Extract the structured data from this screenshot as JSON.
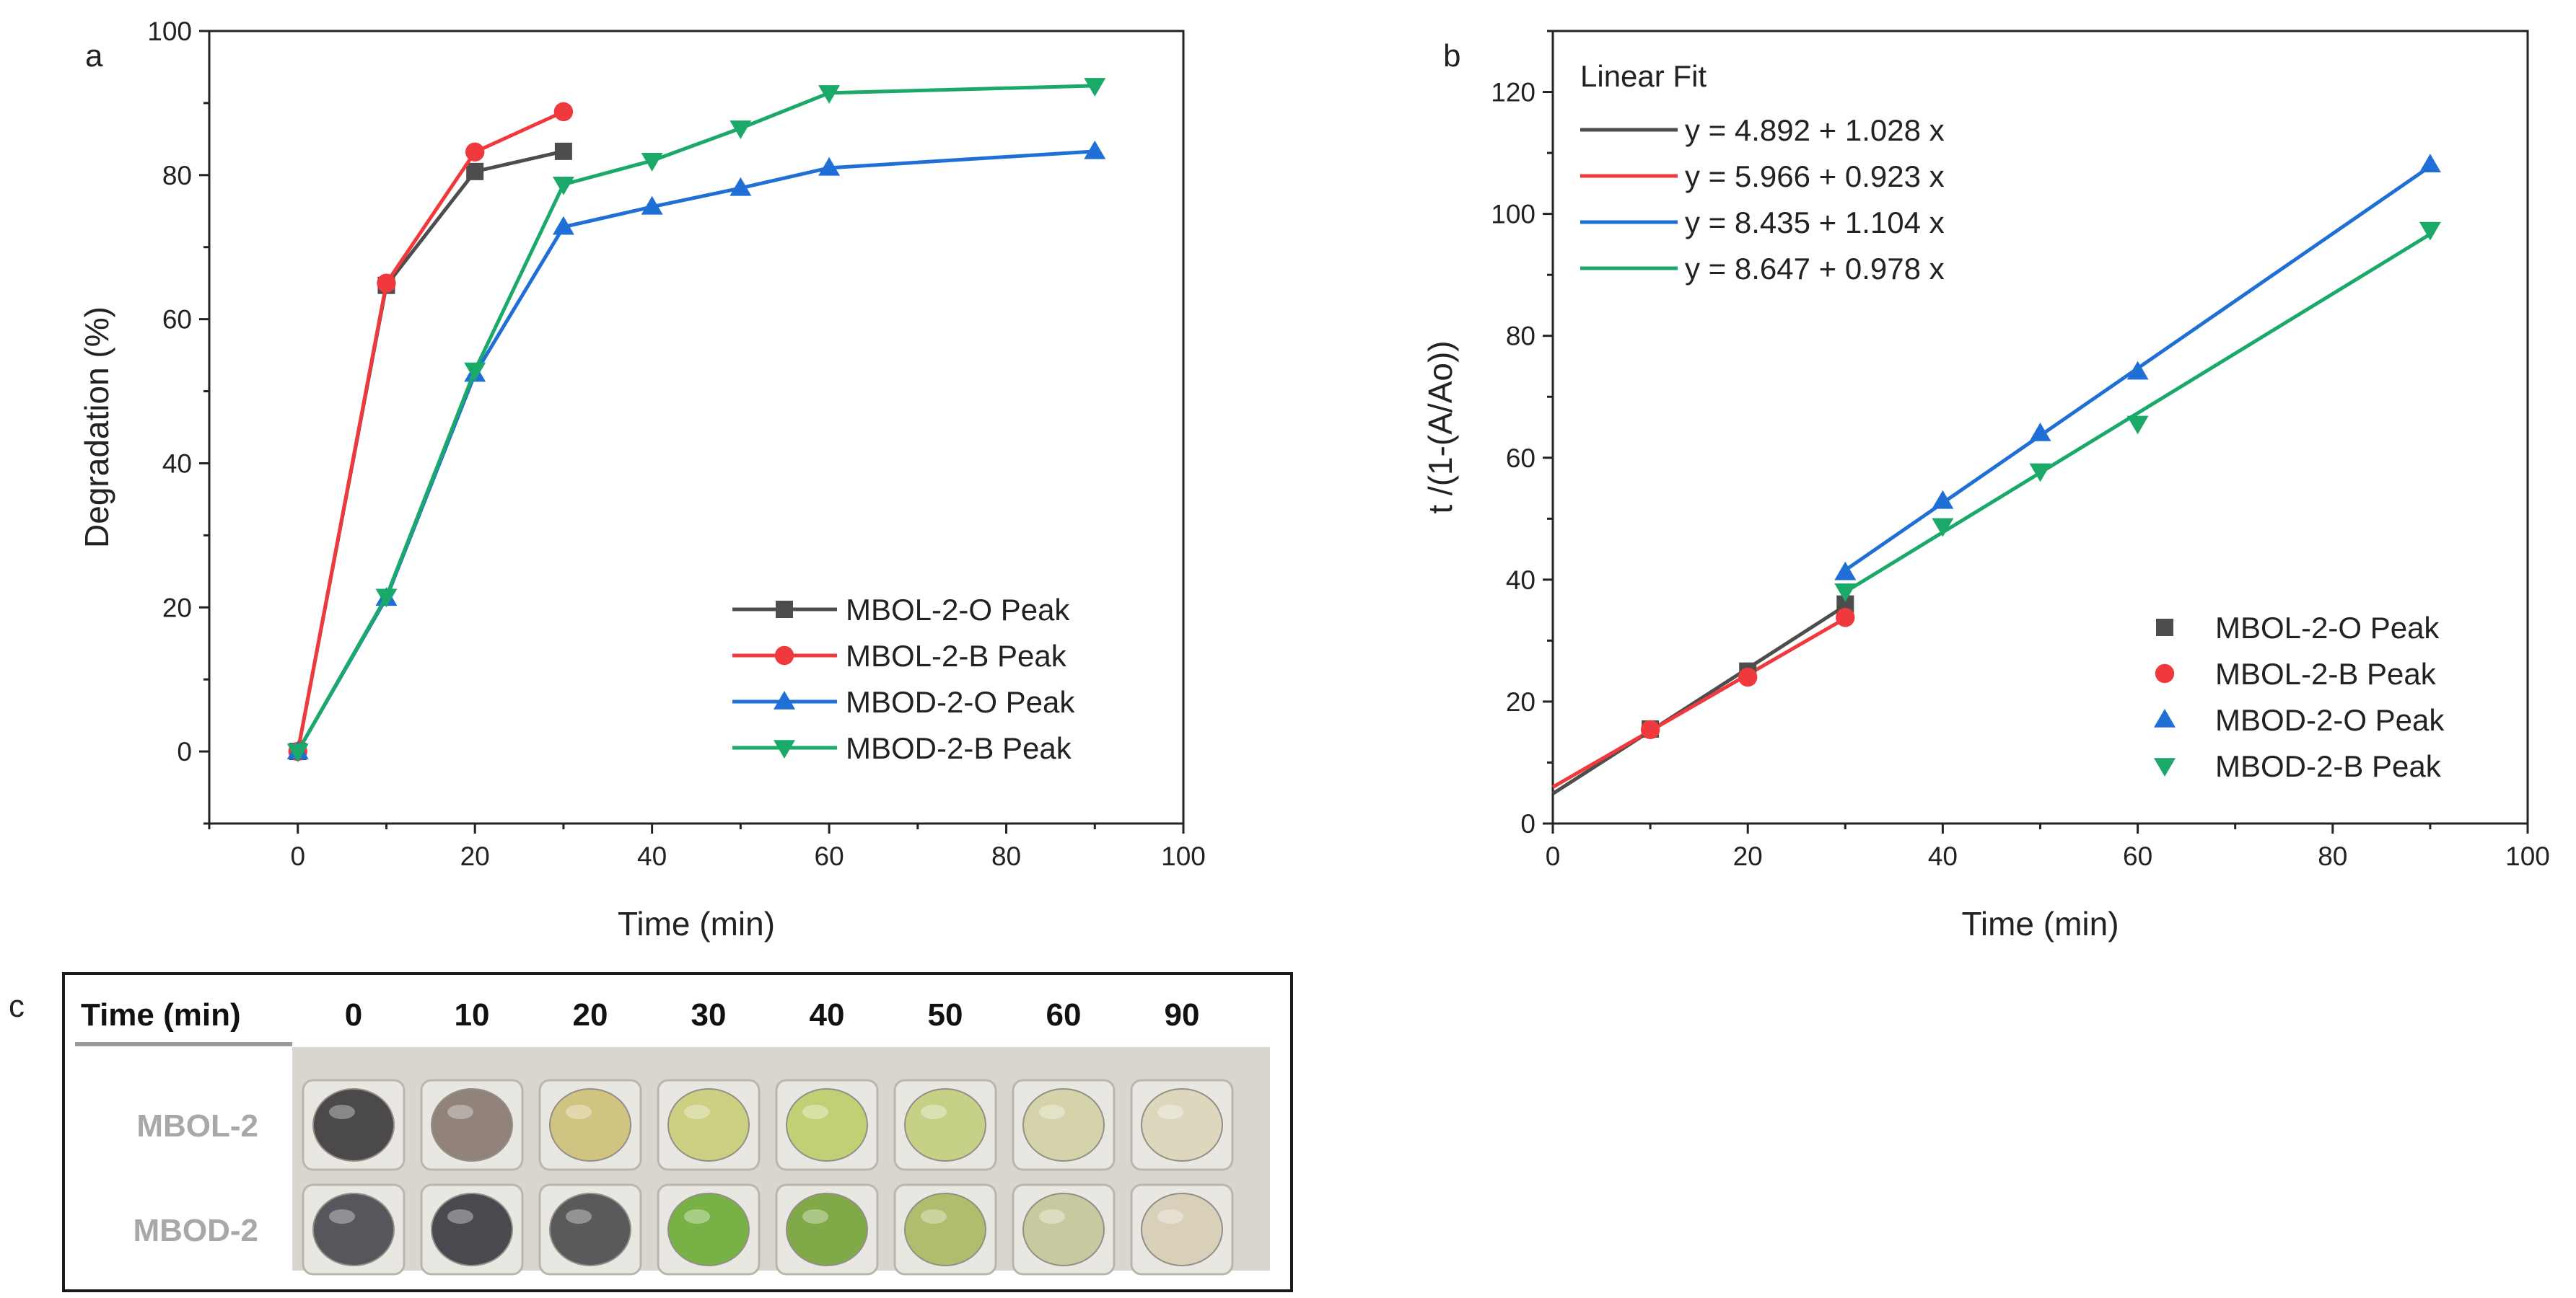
{
  "panel_letters": {
    "a": "a",
    "b": "b",
    "c": "c"
  },
  "colors": {
    "mbol_o": "#4d4d4d",
    "mbol_b": "#f0393d",
    "mbod_o": "#1f6fd6",
    "mbod_b": "#1ba96a"
  },
  "chart_data": [
    {
      "id": "a",
      "type": "line",
      "xlabel": "Time (min)",
      "ylabel": "Degradation (%)",
      "xlim": [
        -10,
        100
      ],
      "ylim": [
        -10,
        100
      ],
      "xticks": [
        0,
        20,
        40,
        60,
        80,
        100
      ],
      "yticks": [
        0,
        20,
        40,
        60,
        80,
        100
      ],
      "legend_position": "bottom-right",
      "series": [
        {
          "name": "MBOL-2-O Peak",
          "marker": "square",
          "color": "#4d4d4d",
          "x": [
            0,
            10,
            20,
            30
          ],
          "y": [
            0,
            64.7,
            80.5,
            83.3
          ]
        },
        {
          "name": "MBOL-2-B Peak",
          "marker": "circle",
          "color": "#f0393d",
          "x": [
            0,
            10,
            20,
            30
          ],
          "y": [
            0,
            65.0,
            83.2,
            88.8
          ]
        },
        {
          "name": "MBOD-2-O Peak",
          "marker": "triangle-up",
          "color": "#1f6fd6",
          "x": [
            0,
            10,
            20,
            30,
            40,
            50,
            60,
            90
          ],
          "y": [
            0,
            21.3,
            52.4,
            72.8,
            75.6,
            78.2,
            81.0,
            83.3
          ]
        },
        {
          "name": "MBOD-2-B Peak",
          "marker": "triangle-down",
          "color": "#1ba96a",
          "x": [
            0,
            10,
            20,
            30,
            40,
            50,
            60,
            90
          ],
          "y": [
            0,
            21.5,
            52.9,
            78.7,
            82.0,
            86.5,
            91.4,
            92.4
          ]
        }
      ]
    },
    {
      "id": "b",
      "type": "scatter",
      "xlabel": "Time (min)",
      "ylabel": "t /(1-(A/Ao))",
      "xlim": [
        0,
        100
      ],
      "ylim": [
        0,
        130
      ],
      "xticks": [
        0,
        20,
        40,
        60,
        80,
        100
      ],
      "yticks": [
        0,
        20,
        40,
        60,
        80,
        100,
        120
      ],
      "fit_title": "Linear Fit",
      "fits": [
        {
          "label": "y = 4.892 + 1.028 x",
          "intercept": 4.892,
          "slope": 1.028,
          "color": "#4d4d4d",
          "x_range": [
            0,
            30
          ]
        },
        {
          "label": "y = 5.966 + 0.923 x",
          "intercept": 5.966,
          "slope": 0.923,
          "color": "#f0393d",
          "x_range": [
            0,
            30
          ]
        },
        {
          "label": "y = 8.435 + 1.104 x",
          "intercept": 8.435,
          "slope": 1.104,
          "color": "#1f6fd6",
          "x_range": [
            30,
            90
          ]
        },
        {
          "label": "y = 8.647 + 0.978 x",
          "intercept": 8.647,
          "slope": 0.978,
          "color": "#1ba96a",
          "x_range": [
            30,
            90
          ]
        }
      ],
      "legend_position": "bottom-right",
      "series": [
        {
          "name": "MBOL-2-O Peak",
          "marker": "square",
          "color": "#4d4d4d",
          "x": [
            10,
            20,
            30
          ],
          "y": [
            15.5,
            25.0,
            36.0
          ]
        },
        {
          "name": "MBOL-2-B Peak",
          "marker": "circle",
          "color": "#f0393d",
          "x": [
            10,
            20,
            30
          ],
          "y": [
            15.4,
            24.0,
            33.8
          ]
        },
        {
          "name": "MBOD-2-O Peak",
          "marker": "triangle-up",
          "color": "#1f6fd6",
          "x": [
            30,
            40,
            50,
            60,
            90
          ],
          "y": [
            41.2,
            52.9,
            64.0,
            74.1,
            108.1
          ]
        },
        {
          "name": "MBOD-2-B Peak",
          "marker": "triangle-down",
          "color": "#1ba96a",
          "x": [
            30,
            40,
            50,
            60,
            90
          ],
          "y": [
            38.1,
            48.8,
            57.8,
            65.6,
            97.4
          ]
        }
      ]
    }
  ],
  "photo_panel": {
    "header_label": "Time (min)",
    "times": [
      "0",
      "10",
      "20",
      "30",
      "40",
      "50",
      "60",
      "90"
    ],
    "rows": [
      {
        "label": "MBOL-2",
        "colors": [
          "#3e3c3e",
          "#8a7a72",
          "#cfc07a",
          "#c9cf7a",
          "#bfcf6c",
          "#c4cf80",
          "#d3d2a6",
          "#dcd6bc"
        ]
      },
      {
        "label": "MBOD-2",
        "colors": [
          "#4a4a52",
          "#3c3c44",
          "#4e4e50",
          "#6fae3a",
          "#78a43a",
          "#a9bb64",
          "#c7c79a",
          "#d7cfb5"
        ]
      }
    ]
  }
}
